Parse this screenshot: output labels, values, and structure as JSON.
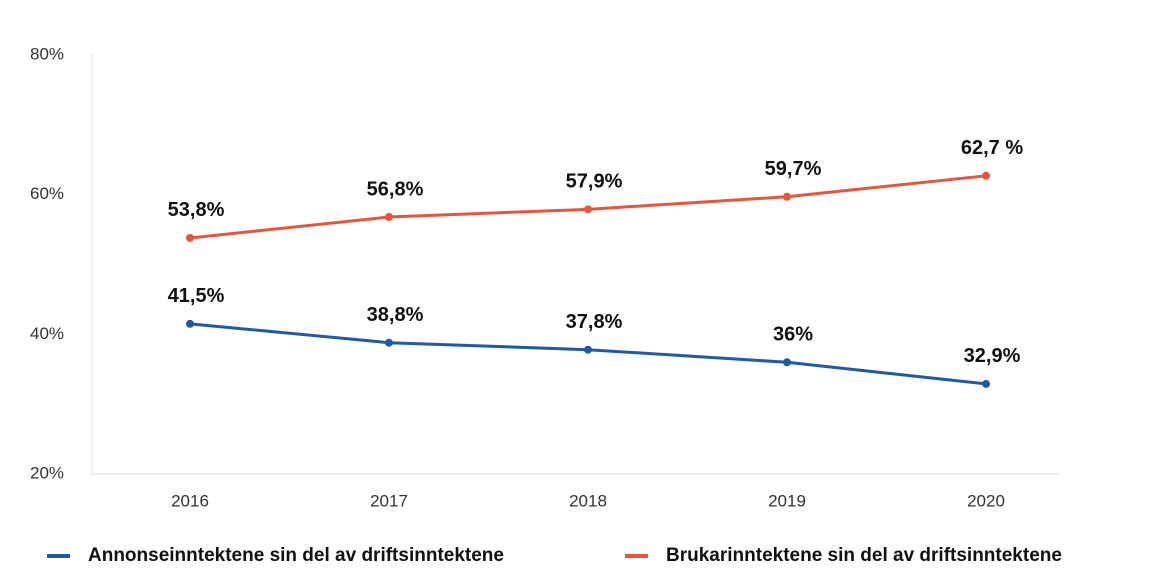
{
  "chart_data": {
    "type": "line",
    "categories": [
      "2016",
      "2017",
      "2018",
      "2019",
      "2020"
    ],
    "series": [
      {
        "name": "Annonseinntektene sin del av driftsinntektene",
        "color": "#1f5aa6",
        "values": [
          41.5,
          38.8,
          37.8,
          36,
          32.9
        ],
        "value_labels": [
          "41,5%",
          "38,8%",
          "37,8%",
          "36%",
          "32,9%"
        ]
      },
      {
        "name": "Brukarinntektene sin del av driftsinntektene",
        "color": "#e8553a",
        "values": [
          53.8,
          56.8,
          57.9,
          59.7,
          62.7
        ],
        "value_labels": [
          "53,8%",
          "56,8%",
          "57,9%",
          "59,7%",
          "62,7 %"
        ]
      }
    ],
    "ylim": [
      20,
      80
    ],
    "yticks": [
      {
        "value": 20,
        "label": "20%"
      },
      {
        "value": 40,
        "label": "40%"
      },
      {
        "value": 60,
        "label": "60%"
      },
      {
        "value": 80,
        "label": "80%"
      }
    ]
  }
}
